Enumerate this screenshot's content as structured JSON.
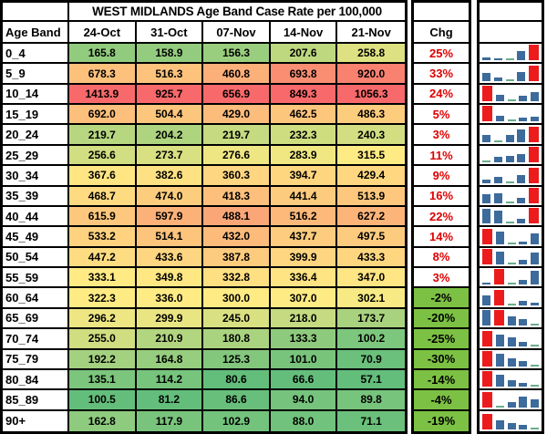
{
  "chart_data": {
    "type": "table",
    "title": "WEST MIDLANDS Age Band Case Rate per 100,000",
    "columns": [
      "Age Band",
      "24-Oct",
      "31-Oct",
      "07-Nov",
      "14-Nov",
      "21-Nov"
    ],
    "chg_header": "Chg",
    "rows": [
      {
        "band": "0_4",
        "values": [
          165.8,
          158.9,
          156.3,
          207.6,
          258.8
        ],
        "chg": "25%"
      },
      {
        "band": "5_9",
        "values": [
          678.3,
          516.3,
          460.8,
          693.8,
          920.0
        ],
        "chg": "33%"
      },
      {
        "band": "10_14",
        "values": [
          1413.9,
          925.7,
          656.9,
          849.3,
          1056.3
        ],
        "chg": "24%"
      },
      {
        "band": "15_19",
        "values": [
          692.0,
          504.4,
          429.0,
          462.5,
          486.3
        ],
        "chg": "5%"
      },
      {
        "band": "20_24",
        "values": [
          219.7,
          204.2,
          219.7,
          232.3,
          240.3
        ],
        "chg": "3%"
      },
      {
        "band": "25_29",
        "values": [
          256.6,
          273.7,
          276.6,
          283.9,
          315.5
        ],
        "chg": "11%"
      },
      {
        "band": "30_34",
        "values": [
          367.6,
          382.6,
          360.3,
          394.7,
          429.4
        ],
        "chg": "9%"
      },
      {
        "band": "35_39",
        "values": [
          468.7,
          474.0,
          418.3,
          441.4,
          513.9
        ],
        "chg": "16%"
      },
      {
        "band": "40_44",
        "values": [
          615.9,
          597.9,
          488.1,
          516.2,
          627.2
        ],
        "chg": "22%"
      },
      {
        "band": "45_49",
        "values": [
          533.2,
          514.1,
          432.0,
          437.7,
          497.5
        ],
        "chg": "14%"
      },
      {
        "band": "50_54",
        "values": [
          447.2,
          433.6,
          387.8,
          399.9,
          433.3
        ],
        "chg": "8%"
      },
      {
        "band": "55_59",
        "values": [
          333.1,
          349.8,
          332.8,
          336.4,
          347.0
        ],
        "chg": "3%"
      },
      {
        "band": "60_64",
        "values": [
          322.3,
          336.0,
          300.0,
          307.0,
          302.1
        ],
        "chg": "-2%"
      },
      {
        "band": "65_69",
        "values": [
          296.2,
          299.9,
          245.0,
          218.0,
          173.7
        ],
        "chg": "-20%"
      },
      {
        "band": "70_74",
        "values": [
          255.0,
          210.9,
          180.8,
          133.3,
          100.2
        ],
        "chg": "-25%"
      },
      {
        "band": "75_79",
        "values": [
          192.2,
          164.8,
          125.3,
          101.0,
          70.9
        ],
        "chg": "-30%"
      },
      {
        "band": "80_84",
        "values": [
          135.1,
          114.2,
          80.6,
          66.6,
          57.1
        ],
        "chg": "-14%"
      },
      {
        "band": "85_89",
        "values": [
          100.5,
          81.2,
          86.6,
          94.0,
          89.8
        ],
        "chg": "-4%"
      },
      {
        "band": "90+",
        "values": [
          162.8,
          117.9,
          102.9,
          88.0,
          71.1
        ],
        "chg": "-19%"
      }
    ],
    "heatmap": {
      "scope": "per-date-column",
      "min_color": "#63BE7B",
      "mid_color": "#FFEB84",
      "max_color": "#F8696B",
      "midpoint": "median"
    },
    "sparklines": {
      "type": "column",
      "scope": "per-row",
      "bar_color": "#3D6B9B",
      "high_point_color": "#EC1C1C",
      "low_point_color": "#6CAE8E"
    }
  },
  "colors": {
    "chg_positive_text": "#DD0000",
    "chg_negative_bg": "#7CC143",
    "grid": "#000000",
    "background": "#FFFFFF"
  }
}
